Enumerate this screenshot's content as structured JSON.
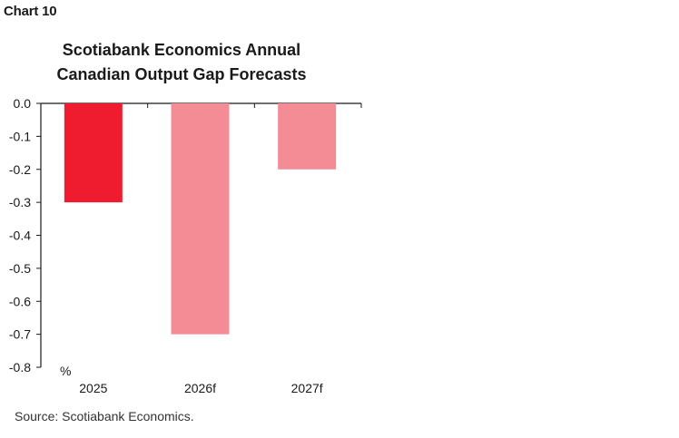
{
  "header": {
    "chart_label": "Chart 10",
    "title_line1": "Scotiabank Economics Annual",
    "title_line2": "Canadian Output Gap Forecasts"
  },
  "source": "Source: Scotiabank Economics.",
  "colors": {
    "actual": "#ee1c2e",
    "forecast": "#f48c95"
  },
  "chart_data": {
    "type": "bar",
    "title": "Scotiabank Economics Annual Canadian Output Gap Forecasts",
    "categories": [
      "2025",
      "2026f",
      "2027f"
    ],
    "values": [
      -0.3,
      -0.7,
      -0.2
    ],
    "bar_colors": [
      "#ee1c2e",
      "#f48c95",
      "#f48c95"
    ],
    "unit_label": "%",
    "ylim": [
      -0.8,
      0.0
    ],
    "yticks": [
      "0.0",
      "-0.1",
      "-0.2",
      "-0.3",
      "-0.4",
      "-0.5",
      "-0.6",
      "-0.7",
      "-0.8"
    ],
    "grid": false,
    "legend": "none"
  }
}
